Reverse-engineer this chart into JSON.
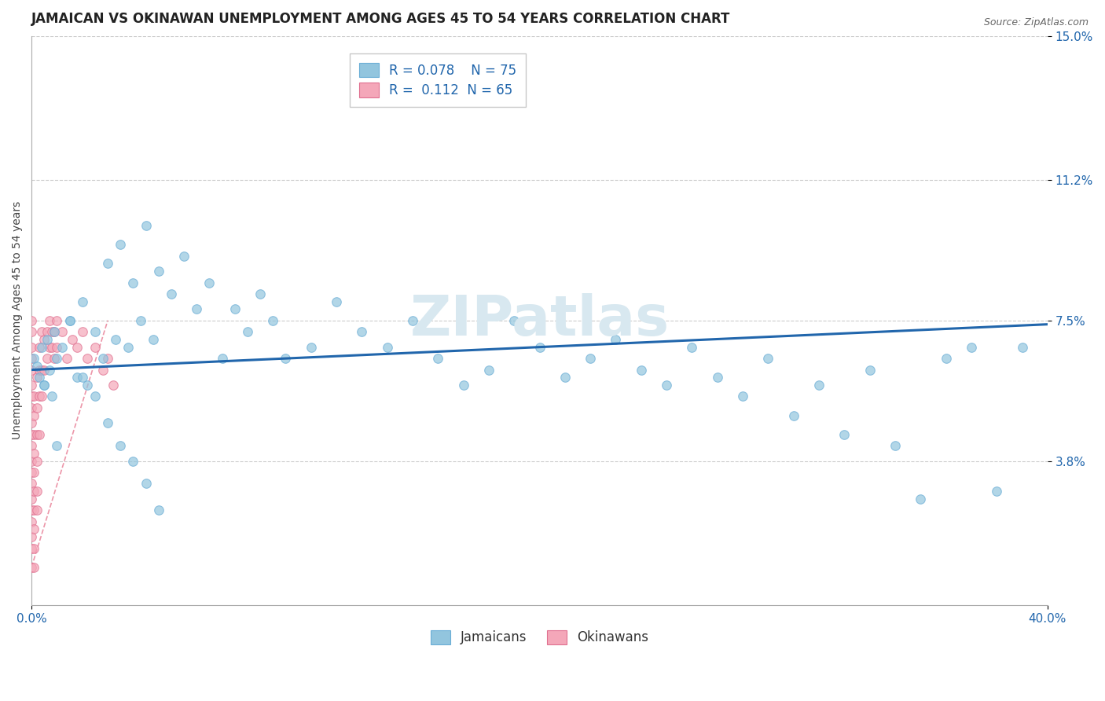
{
  "title": "JAMAICAN VS OKINAWAN UNEMPLOYMENT AMONG AGES 45 TO 54 YEARS CORRELATION CHART",
  "source": "Source: ZipAtlas.com",
  "ylabel": "Unemployment Among Ages 45 to 54 years",
  "xlim": [
    0.0,
    0.4
  ],
  "ylim": [
    0.0,
    0.15
  ],
  "yticks": [
    0.038,
    0.075,
    0.112,
    0.15
  ],
  "ytick_labels": [
    "3.8%",
    "7.5%",
    "11.2%",
    "15.0%"
  ],
  "xticks": [
    0.0,
    0.4
  ],
  "xtick_labels": [
    "0.0%",
    "40.0%"
  ],
  "legend_line1": "R = 0.078    N = 75",
  "legend_line2": "R =  0.112  N = 65",
  "jamaican_color": "#92c5de",
  "okinawan_color": "#f4a7b9",
  "jamaican_edge": "#6baed6",
  "okinawan_edge": "#e07090",
  "trend_blue_color": "#2166ac",
  "trend_pink_color": "#e05070",
  "watermark_color": "#d8e8f0",
  "title_fontsize": 12,
  "axis_label_fontsize": 10,
  "tick_fontsize": 11,
  "background_color": "#ffffff",
  "jamaicans_x": [
    0.001,
    0.002,
    0.003,
    0.004,
    0.005,
    0.006,
    0.007,
    0.008,
    0.009,
    0.01,
    0.012,
    0.015,
    0.018,
    0.02,
    0.022,
    0.025,
    0.028,
    0.03,
    0.033,
    0.035,
    0.038,
    0.04,
    0.043,
    0.045,
    0.048,
    0.05,
    0.055,
    0.06,
    0.065,
    0.07,
    0.075,
    0.08,
    0.085,
    0.09,
    0.095,
    0.1,
    0.11,
    0.12,
    0.13,
    0.14,
    0.15,
    0.16,
    0.17,
    0.18,
    0.19,
    0.2,
    0.21,
    0.22,
    0.23,
    0.24,
    0.25,
    0.26,
    0.27,
    0.28,
    0.29,
    0.3,
    0.31,
    0.32,
    0.33,
    0.34,
    0.35,
    0.36,
    0.37,
    0.38,
    0.39,
    0.005,
    0.01,
    0.015,
    0.02,
    0.025,
    0.03,
    0.035,
    0.04,
    0.045,
    0.05
  ],
  "jamaicans_y": [
    0.065,
    0.063,
    0.06,
    0.068,
    0.058,
    0.07,
    0.062,
    0.055,
    0.072,
    0.065,
    0.068,
    0.075,
    0.06,
    0.08,
    0.058,
    0.072,
    0.065,
    0.09,
    0.07,
    0.095,
    0.068,
    0.085,
    0.075,
    0.1,
    0.07,
    0.088,
    0.082,
    0.092,
    0.078,
    0.085,
    0.065,
    0.078,
    0.072,
    0.082,
    0.075,
    0.065,
    0.068,
    0.08,
    0.072,
    0.068,
    0.075,
    0.065,
    0.058,
    0.062,
    0.075,
    0.068,
    0.06,
    0.065,
    0.07,
    0.062,
    0.058,
    0.068,
    0.06,
    0.055,
    0.065,
    0.05,
    0.058,
    0.045,
    0.062,
    0.042,
    0.028,
    0.065,
    0.068,
    0.03,
    0.068,
    0.058,
    0.042,
    0.075,
    0.06,
    0.055,
    0.048,
    0.042,
    0.038,
    0.032,
    0.025
  ],
  "okinawans_x": [
    0.0,
    0.0,
    0.0,
    0.0,
    0.0,
    0.0,
    0.0,
    0.0,
    0.0,
    0.0,
    0.0,
    0.0,
    0.0,
    0.0,
    0.0,
    0.0,
    0.0,
    0.0,
    0.0,
    0.0,
    0.001,
    0.001,
    0.001,
    0.001,
    0.001,
    0.001,
    0.001,
    0.001,
    0.001,
    0.001,
    0.002,
    0.002,
    0.002,
    0.002,
    0.002,
    0.002,
    0.003,
    0.003,
    0.003,
    0.003,
    0.004,
    0.004,
    0.004,
    0.005,
    0.005,
    0.006,
    0.006,
    0.007,
    0.007,
    0.008,
    0.008,
    0.009,
    0.009,
    0.01,
    0.01,
    0.012,
    0.014,
    0.016,
    0.018,
    0.02,
    0.022,
    0.025,
    0.028,
    0.03,
    0.032
  ],
  "okinawans_y": [
    0.01,
    0.015,
    0.018,
    0.022,
    0.025,
    0.028,
    0.032,
    0.035,
    0.038,
    0.042,
    0.045,
    0.048,
    0.052,
    0.055,
    0.058,
    0.062,
    0.065,
    0.068,
    0.072,
    0.075,
    0.01,
    0.015,
    0.02,
    0.025,
    0.03,
    0.035,
    0.04,
    0.045,
    0.05,
    0.055,
    0.025,
    0.03,
    0.038,
    0.045,
    0.052,
    0.06,
    0.045,
    0.055,
    0.062,
    0.068,
    0.055,
    0.062,
    0.072,
    0.062,
    0.07,
    0.065,
    0.072,
    0.068,
    0.075,
    0.072,
    0.068,
    0.072,
    0.065,
    0.075,
    0.068,
    0.072,
    0.065,
    0.07,
    0.068,
    0.072,
    0.065,
    0.068,
    0.062,
    0.065,
    0.058
  ],
  "blue_trend_x": [
    0.0,
    0.4
  ],
  "blue_trend_y": [
    0.062,
    0.074
  ],
  "pink_trend_x": [
    0.0,
    0.03
  ],
  "pink_trend_y": [
    0.01,
    0.075
  ]
}
